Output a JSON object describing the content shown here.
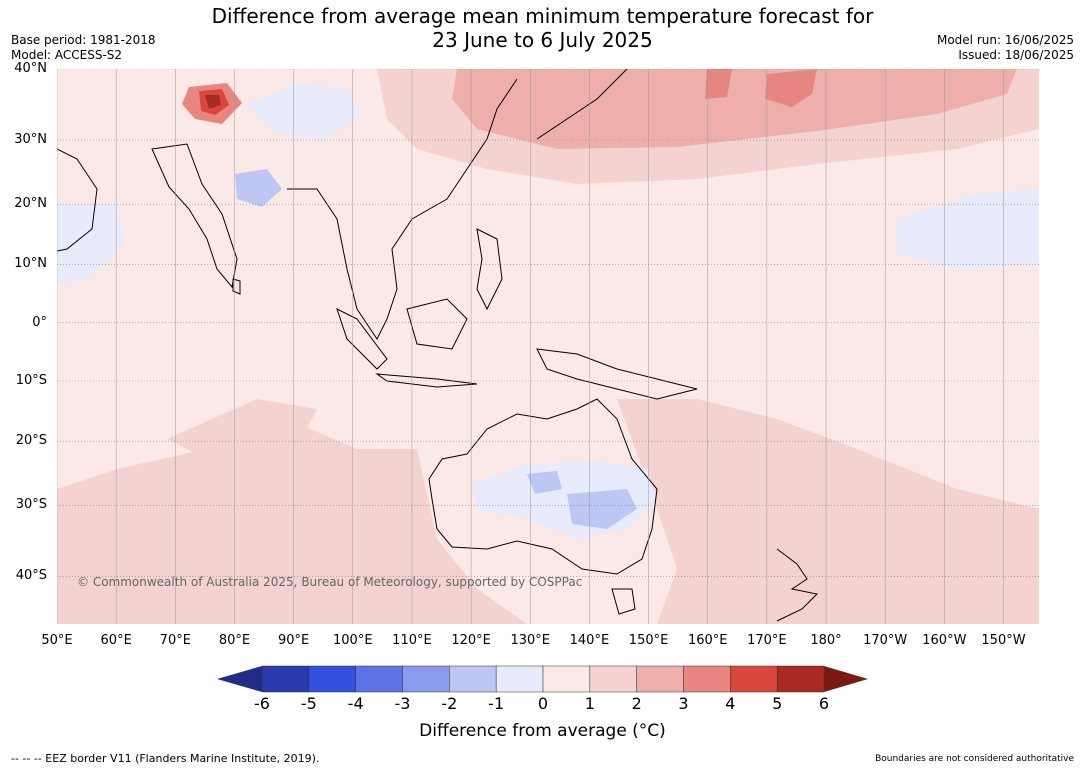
{
  "title": {
    "line1": "Difference from average mean minimum temperature forecast for",
    "line2": "23 June to 6 July 2025"
  },
  "meta": {
    "base_period": "Base period: 1981-2018",
    "model": "Model: ACCESS-S2",
    "model_run": "Model run: 16/06/2025",
    "issued": "Issued: 18/06/2025"
  },
  "map": {
    "extent": {
      "lon_min": 50,
      "lon_max": 216,
      "lat_max": 40,
      "lat_min": -46
    },
    "lat_ticks": [
      {
        "label": "40°N",
        "lat": 40
      },
      {
        "label": "30°N",
        "lat": 30
      },
      {
        "label": "20°N",
        "lat": 20
      },
      {
        "label": "10°N",
        "lat": 10
      },
      {
        "label": "0°",
        "lat": 0
      },
      {
        "label": "10°S",
        "lat": -10
      },
      {
        "label": "20°S",
        "lat": -20
      },
      {
        "label": "30°S",
        "lat": -30
      },
      {
        "label": "40°S",
        "lat": -40
      }
    ],
    "lon_ticks": [
      {
        "label": "50°E",
        "lon": 50
      },
      {
        "label": "60°E",
        "lon": 60
      },
      {
        "label": "70°E",
        "lon": 70
      },
      {
        "label": "80°E",
        "lon": 80
      },
      {
        "label": "90°E",
        "lon": 90
      },
      {
        "label": "100°E",
        "lon": 100
      },
      {
        "label": "110°E",
        "lon": 110
      },
      {
        "label": "120°E",
        "lon": 120
      },
      {
        "label": "130°E",
        "lon": 130
      },
      {
        "label": "140°E",
        "lon": 140
      },
      {
        "label": "150°E",
        "lon": 150
      },
      {
        "label": "160°E",
        "lon": 160
      },
      {
        "label": "170°E",
        "lon": 170
      },
      {
        "label": "180°",
        "lon": 180
      },
      {
        "label": "170°W",
        "lon": 190
      },
      {
        "label": "160°W",
        "lon": 200
      },
      {
        "label": "150°W",
        "lon": 210
      }
    ],
    "copyright": "© Commonwealth of Australia 2025, Bureau of Meteorology, supported by COSPPac",
    "background_anomaly_color": "#fbe9e7"
  },
  "colorbar": {
    "ticks": [
      "-6",
      "-5",
      "-4",
      "-3",
      "-2",
      "-1",
      "0",
      "1",
      "2",
      "3",
      "4",
      "5",
      "6"
    ],
    "colors": [
      "#1f2d87",
      "#2a3bb0",
      "#3350e0",
      "#5c73e6",
      "#8a9bec",
      "#bec6f3",
      "#e8ebfb",
      "#fbe9e7",
      "#f4d2d0",
      "#eeafab",
      "#e78580",
      "#d9483d",
      "#a92a22",
      "#7a1a14"
    ],
    "label": "Difference from average (°C)"
  },
  "footer": {
    "left": "--  --  -- EEZ border V11 (Flanders Marine Institute, 2019).",
    "right": "Boundaries are not considered authoritative"
  }
}
